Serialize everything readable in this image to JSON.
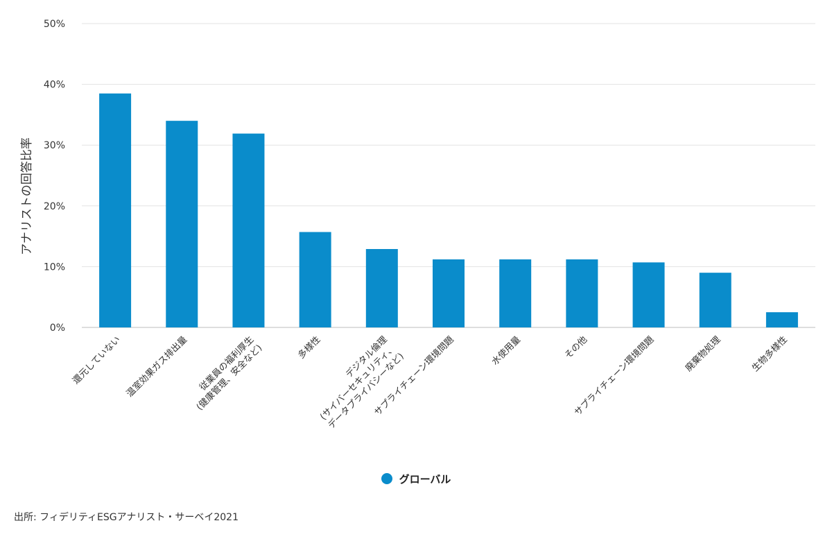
{
  "chart_data": {
    "type": "bar",
    "ylabel": "アナリストの回答比率",
    "xlabel": "",
    "ylim": [
      0,
      50
    ],
    "y_ticks": [
      "0%",
      "10%",
      "20%",
      "30%",
      "40%",
      "50%"
    ],
    "y_tick_values": [
      0,
      10,
      20,
      30,
      40,
      50
    ],
    "grid": true,
    "legend_position": "bottom-center",
    "categories": [
      [
        "還元していない"
      ],
      [
        "温室効果ガス排出量"
      ],
      [
        "従業員の福利厚生",
        "(健康管理、安全など)"
      ],
      [
        "多様性"
      ],
      [
        "デジタル倫理",
        "(サイバーセキュリティ、",
        "データプライバシーなど)"
      ],
      [
        "サプライチェーン環境問題"
      ],
      [
        "水使用量"
      ],
      [
        "その他"
      ],
      [
        "サプライチェーン環境問題"
      ],
      [
        "廃棄物処理"
      ],
      [
        "生物多様性"
      ]
    ],
    "series": [
      {
        "name": "グローバル",
        "color": "#0a8ccb",
        "values": [
          38.5,
          34.0,
          31.9,
          15.7,
          12.9,
          11.2,
          11.2,
          11.2,
          10.7,
          9.0,
          2.5
        ]
      }
    ]
  },
  "legend": {
    "label": "グローバル",
    "color": "#0a8ccb"
  },
  "source": "出所: フィデリティESGアナリスト・サーベイ2021"
}
